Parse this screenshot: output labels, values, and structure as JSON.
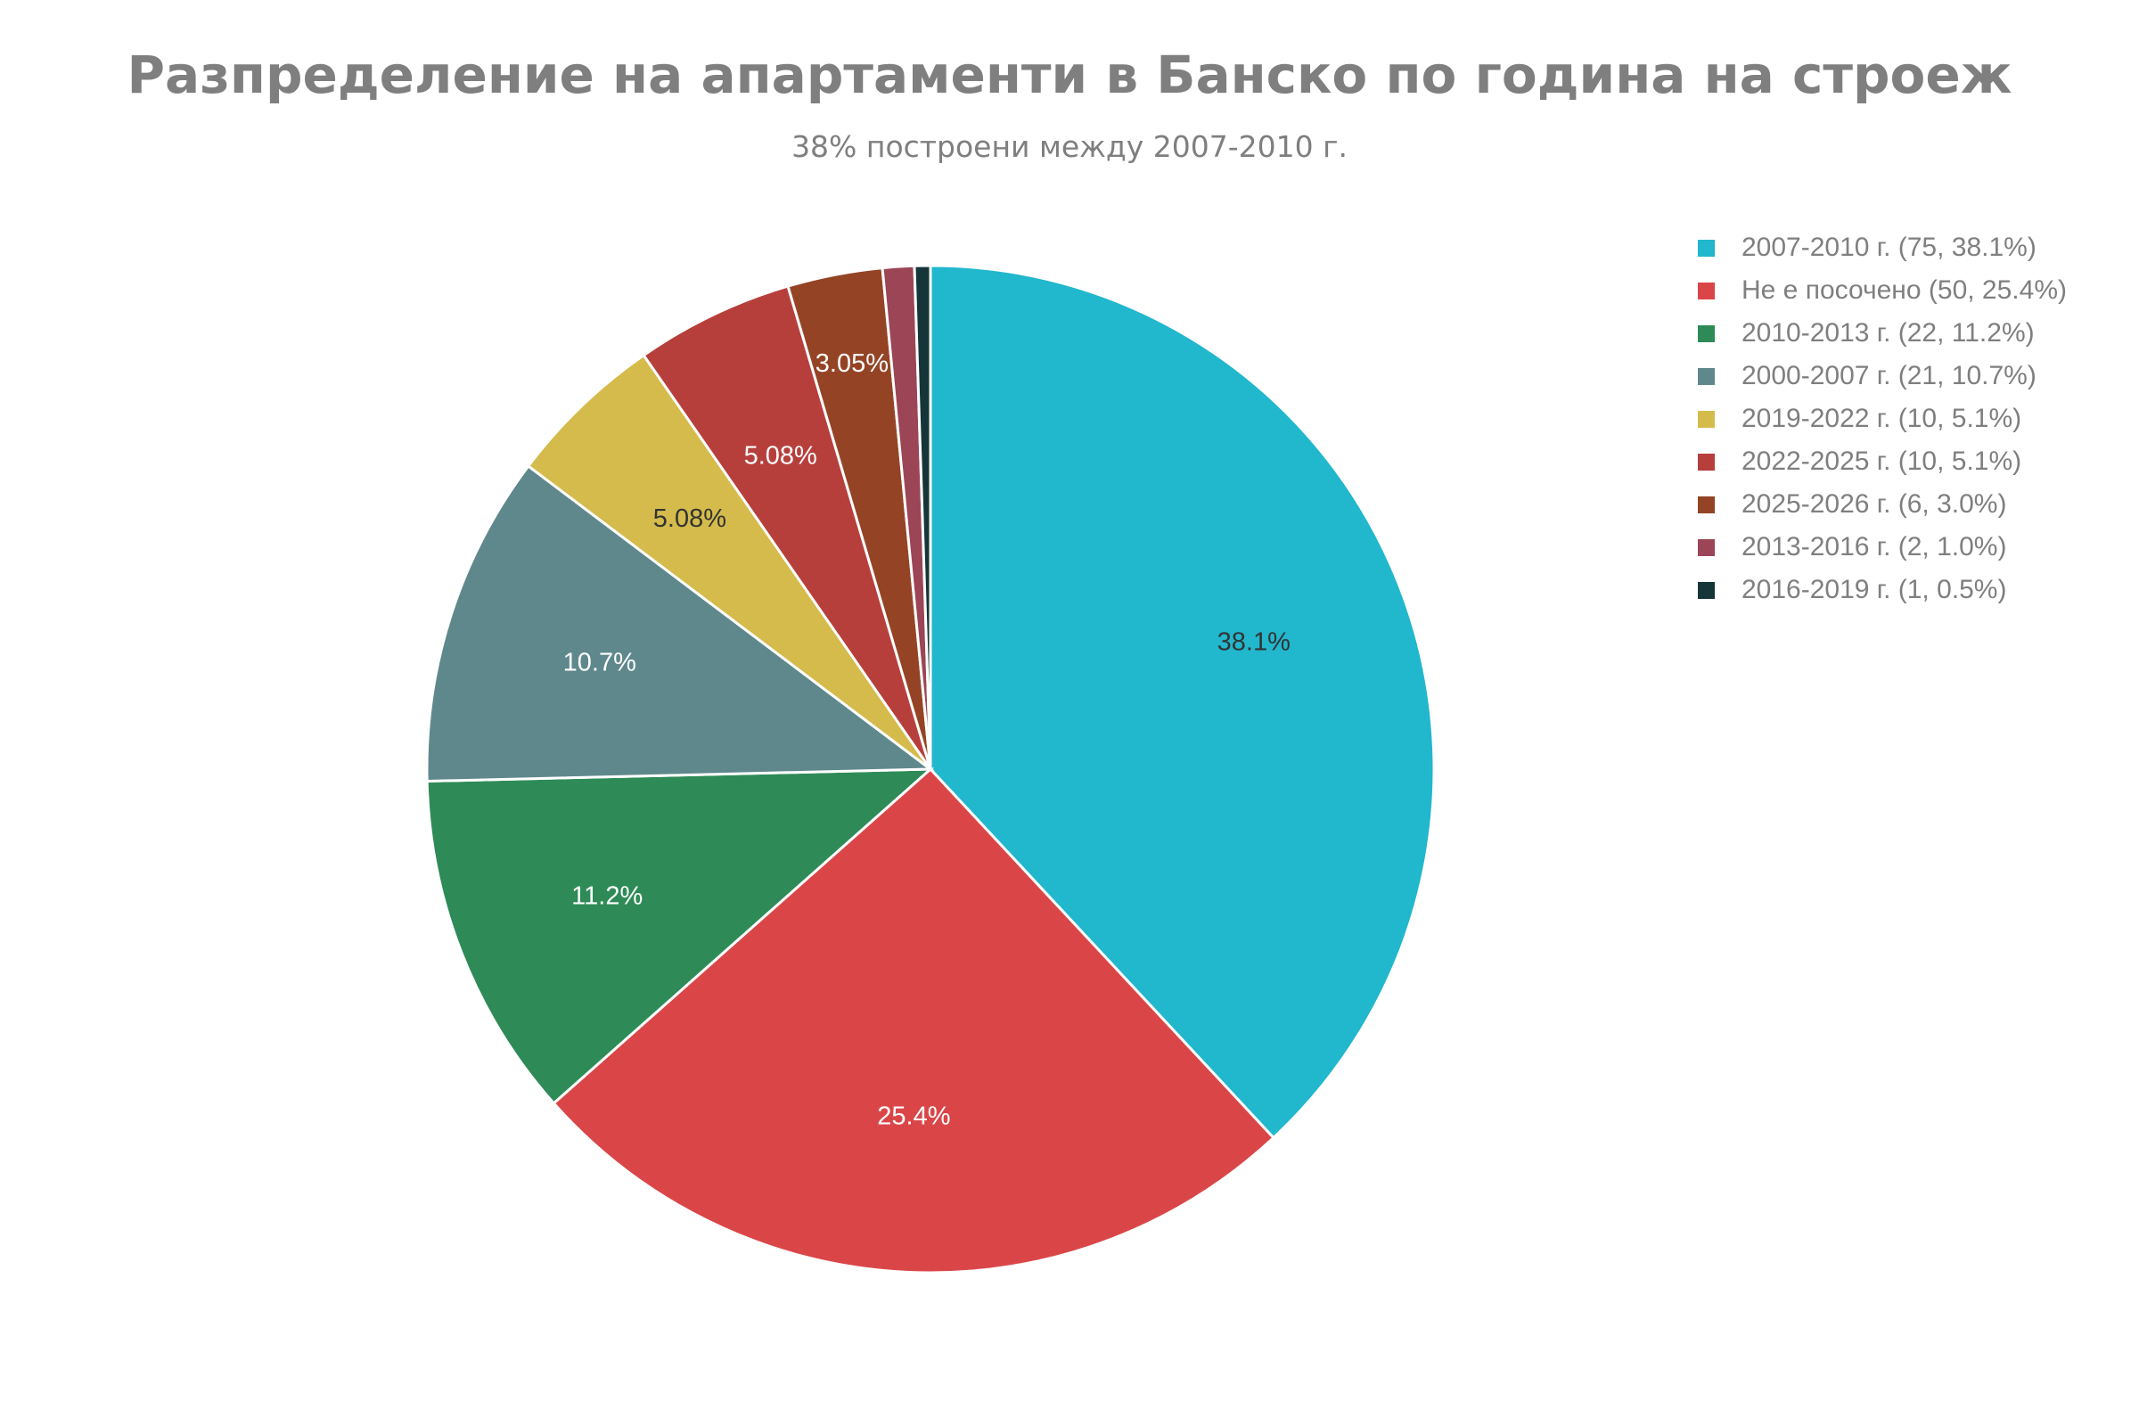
{
  "chart_data": {
    "type": "pie",
    "title": "Разпределение на апартаменти в Банско по година на строеж",
    "subtitle": "38% построени между 2007-2010 г.",
    "legend_position": "right",
    "slices": [
      {
        "label": "2007-2010 г.",
        "value": 75,
        "percent_label": "38.1%",
        "legend": "2007-2010 г. (75, 38.1%)",
        "color": "#21b7cd",
        "text_color": "#333333"
      },
      {
        "label": "Не е посочено",
        "value": 50,
        "percent_label": "25.4%",
        "legend": "Не е посочено (50, 25.4%)",
        "color": "#da4648",
        "text_color": "#ffffff"
      },
      {
        "label": "2010-2013 г.",
        "value": 22,
        "percent_label": "11.2%",
        "legend": "2010-2013 г. (22, 11.2%)",
        "color": "#2e8b57",
        "text_color": "#ffffff"
      },
      {
        "label": "2000-2007 г.",
        "value": 21,
        "percent_label": "10.7%",
        "legend": "2000-2007 г. (21, 10.7%)",
        "color": "#5f888c",
        "text_color": "#ffffff"
      },
      {
        "label": "2019-2022 г.",
        "value": 10,
        "percent_label": "5.08%",
        "legend": "2019-2022 г. (10, 5.1%)",
        "color": "#d4bb4c",
        "text_color": "#333333"
      },
      {
        "label": "2022-2025 г.",
        "value": 10,
        "percent_label": "5.08%",
        "legend": "2022-2025 г. (10, 5.1%)",
        "color": "#b63f3c",
        "text_color": "#ffffff"
      },
      {
        "label": "2025-2026 г.",
        "value": 6,
        "percent_label": "3.05%",
        "legend": "2025-2026 г. (6, 3.0%)",
        "color": "#944425",
        "text_color": "#ffffff"
      },
      {
        "label": "2013-2016 г.",
        "value": 2,
        "percent_label": "",
        "legend": "2013-2016 г. (2, 1.0%)",
        "color": "#9c4556",
        "text_color": "#ffffff"
      },
      {
        "label": "2016-2019 г.",
        "value": 1,
        "percent_label": "",
        "legend": "2016-2019 г. (1, 0.5%)",
        "color": "#163539",
        "text_color": "#ffffff"
      }
    ]
  }
}
